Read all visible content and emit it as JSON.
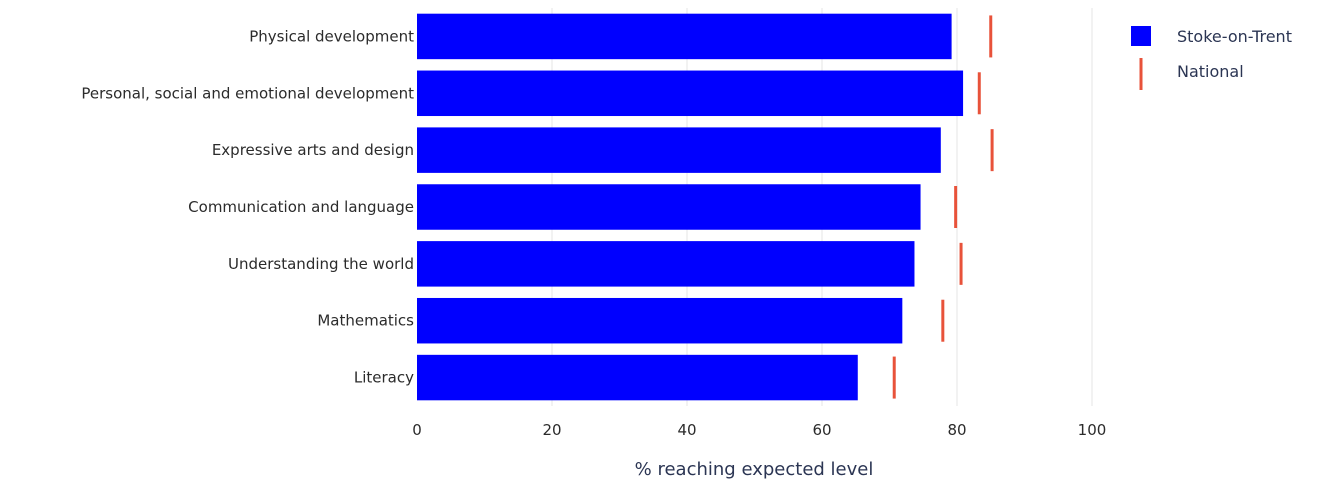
{
  "chart_data": {
    "type": "bar",
    "orientation": "horizontal",
    "categories": [
      "Physical development",
      "Personal, social and emotional development",
      "Expressive arts and design",
      "Communication and language",
      "Understanding the world",
      "Mathematics",
      "Literacy"
    ],
    "series": [
      {
        "name": "Stoke-on-Trent",
        "mark": "bar",
        "color": "#0000ff",
        "values": [
          79.2,
          80.9,
          77.6,
          74.6,
          73.7,
          71.9,
          65.3
        ]
      },
      {
        "name": "National",
        "mark": "tick",
        "color": "#e8523a",
        "values": [
          85.0,
          83.3,
          85.2,
          79.8,
          80.6,
          77.9,
          70.7
        ]
      }
    ],
    "xlabel": "% reaching expected level",
    "ylabel": "",
    "xlim": [
      0,
      100
    ],
    "xticks": [
      "0",
      "20",
      "40",
      "60",
      "80",
      "100"
    ],
    "grid": true,
    "legend_position": "top-right"
  }
}
